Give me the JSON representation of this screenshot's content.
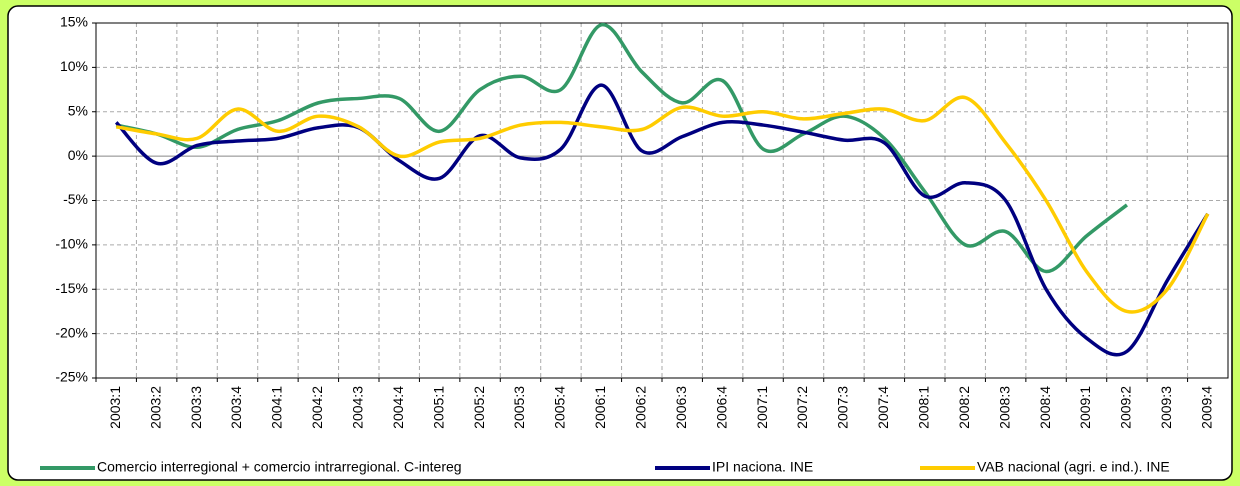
{
  "chart_data": {
    "type": "line",
    "categories": [
      "2003:1",
      "2003:2",
      "2003:3",
      "2003:4",
      "2004:1",
      "2004:2",
      "2004:3",
      "2004:4",
      "2005:1",
      "2005:2",
      "2005:3",
      "2005:4",
      "2006:1",
      "2006:2",
      "2006:3",
      "2006:4",
      "2007:1",
      "2007:2",
      "2007:3",
      "2007:4",
      "2008:1",
      "2008:2",
      "2008:3",
      "2008:4",
      "2009:1",
      "2009:2",
      "2009:3",
      "2009:4"
    ],
    "series": [
      {
        "name": "Comercio interregional + comercio intrarregional. C-intereg",
        "color": "#339966",
        "values": [
          3.5,
          2.5,
          1,
          3,
          4,
          6,
          6.5,
          6.5,
          2.8,
          7.5,
          9,
          7.5,
          14.8,
          9.5,
          6,
          8.5,
          0.8,
          2.5,
          4.5,
          2,
          -4,
          -10,
          -8.5,
          -13,
          -9,
          -5.5,
          null,
          null
        ]
      },
      {
        "name": "IPI naciona. INE",
        "color": "#000080",
        "values": [
          3.8,
          -0.8,
          1.2,
          1.7,
          2,
          3.2,
          3.2,
          -0.5,
          -2.5,
          2.3,
          -0.2,
          0.8,
          8,
          0.6,
          2.2,
          3.8,
          3.5,
          2.7,
          1.8,
          1.5,
          -4.5,
          -3,
          -5,
          -15,
          -20.5,
          -22,
          -14,
          -6.5
        ]
      },
      {
        "name": "VAB nacional (agri. e ind.). INE",
        "color": "#ffcc00",
        "values": [
          3.3,
          2.5,
          2,
          5.3,
          2.8,
          4.5,
          3.3,
          0,
          1.6,
          2,
          3.5,
          3.8,
          3.3,
          3,
          5.5,
          4.5,
          5,
          4.2,
          4.8,
          5.3,
          4,
          6.6,
          1.5,
          -5,
          -13,
          -17.5,
          -15,
          -6.5
        ]
      }
    ],
    "ylim": [
      -25,
      15
    ],
    "yticks": [
      {
        "value": -25,
        "label": "-25%"
      },
      {
        "value": -20,
        "label": "-20%"
      },
      {
        "value": -15,
        "label": "-15%"
      },
      {
        "value": -10,
        "label": "-10%"
      },
      {
        "value": -5,
        "label": "-5%"
      },
      {
        "value": 0,
        "label": "0%"
      },
      {
        "value": 5,
        "label": "5%"
      },
      {
        "value": 10,
        "label": "10%"
      },
      {
        "value": 15,
        "label": "15%"
      }
    ],
    "grid": true
  }
}
